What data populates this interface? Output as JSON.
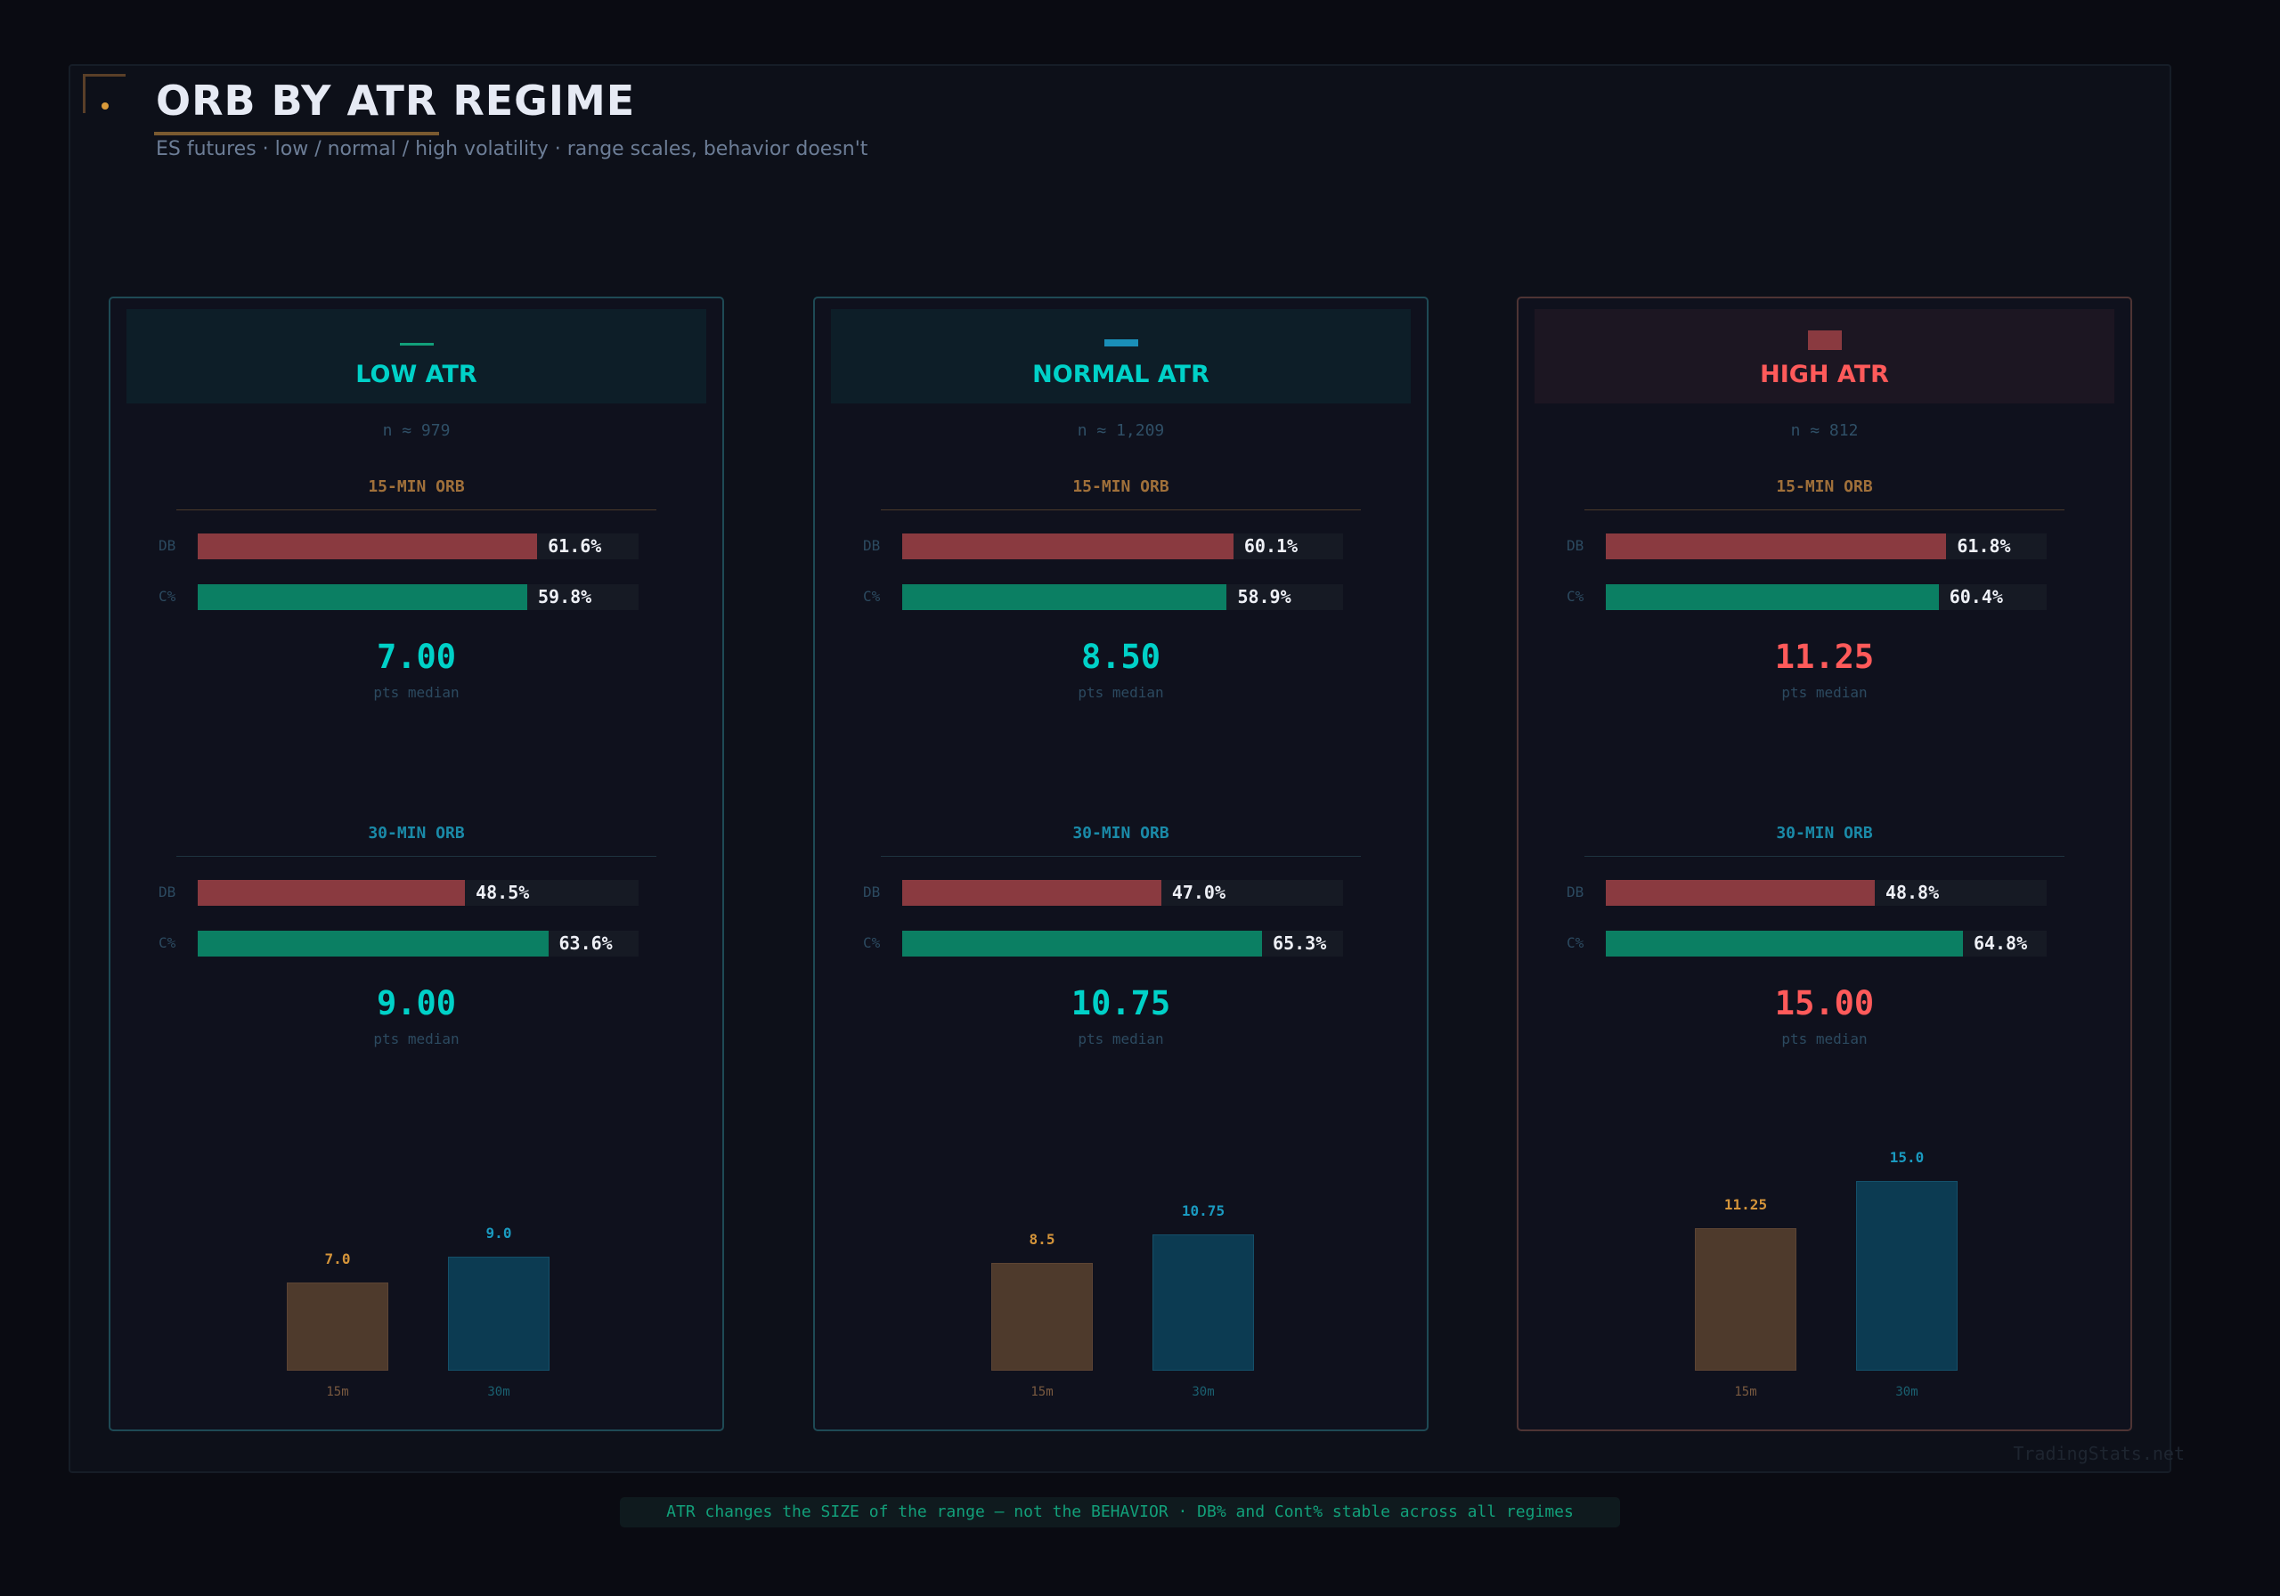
{
  "header": {
    "title": "ORB BY ATR REGIME",
    "subtitle": "ES futures  ·  low / normal / high volatility  ·  range scales, behavior doesn't"
  },
  "colors": {
    "db": "#8a3a40",
    "cont": "#0b7f63",
    "orb15": "#a0703a",
    "orb30": "#1a8aa8",
    "bar15": "#4e3a2c",
    "bar30": "#0c3b52",
    "label15": "#d4943a",
    "label30": "#1a9ac0",
    "cyan": "#00d1c8",
    "red": "#ff5a5a"
  },
  "labels": {
    "orb15": "15-MIN ORB",
    "orb30": "30-MIN ORB",
    "db": "DB",
    "cont": "C%",
    "median": "pts median",
    "x15": "15m",
    "x30": "30m"
  },
  "chart_data": {
    "type": "bar",
    "categories": [
      "15m",
      "30m"
    ],
    "bar_scale_max_pct": 80,
    "regimes": [
      {
        "key": "low",
        "title": "LOW ATR",
        "n": "n ≈ 979",
        "accent": "#00d1c8",
        "icon": "thin-line-icon",
        "orb15": {
          "db": 61.6,
          "db_label": "61.6%",
          "cont": 59.8,
          "cont_label": "59.8%",
          "median": "7.00"
        },
        "orb30": {
          "db": 48.5,
          "db_label": "48.5%",
          "cont": 63.6,
          "cont_label": "63.6%",
          "median": "9.00"
        },
        "bars": [
          {
            "x": "15m",
            "value": 7.0,
            "label": "7.0"
          },
          {
            "x": "30m",
            "value": 9.0,
            "label": "9.0"
          }
        ]
      },
      {
        "key": "normal",
        "title": "NORMAL ATR",
        "n": "n ≈ 1,209",
        "accent": "#00d1c8",
        "icon": "medium-bar-icon",
        "orb15": {
          "db": 60.1,
          "db_label": "60.1%",
          "cont": 58.9,
          "cont_label": "58.9%",
          "median": "8.50"
        },
        "orb30": {
          "db": 47.0,
          "db_label": "47.0%",
          "cont": 65.3,
          "cont_label": "65.3%",
          "median": "10.75"
        },
        "bars": [
          {
            "x": "15m",
            "value": 8.5,
            "label": "8.5"
          },
          {
            "x": "30m",
            "value": 10.75,
            "label": "10.75"
          }
        ]
      },
      {
        "key": "high",
        "title": "HIGH ATR",
        "n": "n ≈ 812",
        "accent": "#ff5a5a",
        "icon": "block-icon",
        "orb15": {
          "db": 61.8,
          "db_label": "61.8%",
          "cont": 60.4,
          "cont_label": "60.4%",
          "median": "11.25"
        },
        "orb30": {
          "db": 48.8,
          "db_label": "48.8%",
          "cont": 64.8,
          "cont_label": "64.8%",
          "median": "15.00"
        },
        "bars": [
          {
            "x": "15m",
            "value": 11.25,
            "label": "11.25"
          },
          {
            "x": "30m",
            "value": 15.0,
            "label": "15.0"
          }
        ]
      }
    ]
  },
  "footer": {
    "note": "ATR changes the SIZE of the range — not the BEHAVIOR  ·  DB% and Cont% stable across all regimes",
    "watermark": "TradingStats.net"
  }
}
